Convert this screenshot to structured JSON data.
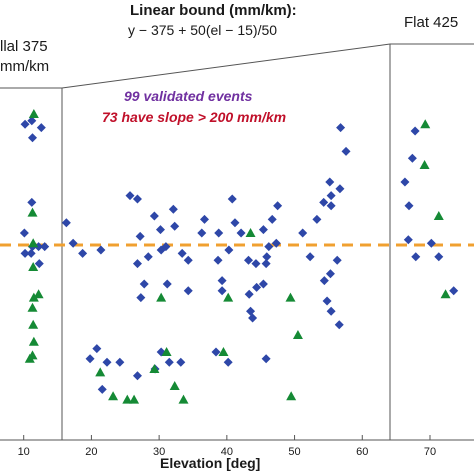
{
  "chart_data": {
    "type": "scatter",
    "xlabel": "Elevation [deg]",
    "ylabel": "",
    "xlim": [
      6.5,
      76.5
    ],
    "ylim": [
      0,
      1
    ],
    "x_ticks": [
      10,
      20,
      30,
      40,
      50,
      60,
      70
    ],
    "grid": false,
    "annotations": {
      "bound_title": "Linear bound (mm/km):",
      "bound_formula": "y − 375 + 50(el − 15)/50",
      "left_label_1": "llal 375",
      "left_label_2": "mm/km",
      "right_label": "Flat 425",
      "validated_events": "99 validated events",
      "slope_events": "73 have slope > 200 mm/km"
    },
    "threshold_line": {
      "style": "dashed",
      "color": "#f0a030"
    },
    "colors": {
      "diamond": "#2e47a8",
      "triangle": "#158a35",
      "line": "#555555"
    },
    "series": [
      {
        "marker": "diamond",
        "points": [
          [
            10.2,
            0.87
          ],
          [
            11.2,
            0.88
          ],
          [
            11.3,
            0.83
          ],
          [
            12.6,
            0.86
          ],
          [
            11.2,
            0.64
          ],
          [
            10.1,
            0.55
          ],
          [
            10.2,
            0.49
          ],
          [
            11.3,
            0.51
          ],
          [
            12.2,
            0.51
          ],
          [
            13.1,
            0.51
          ],
          [
            11.1,
            0.49
          ],
          [
            12.3,
            0.46
          ],
          [
            16.3,
            0.58
          ],
          [
            17.3,
            0.52
          ],
          [
            18.7,
            0.49
          ],
          [
            21.4,
            0.5
          ],
          [
            20.8,
            0.21
          ],
          [
            19.8,
            0.18
          ],
          [
            22.3,
            0.17
          ],
          [
            24.2,
            0.17
          ],
          [
            26.8,
            0.13
          ],
          [
            21.6,
            0.09
          ],
          [
            27.8,
            0.4
          ],
          [
            25.7,
            0.66
          ],
          [
            26.8,
            0.65
          ],
          [
            27.2,
            0.54
          ],
          [
            26.8,
            0.46
          ],
          [
            27.3,
            0.36
          ],
          [
            28.4,
            0.48
          ],
          [
            29.3,
            0.6
          ],
          [
            30.2,
            0.56
          ],
          [
            31.0,
            0.51
          ],
          [
            30.3,
            0.5
          ],
          [
            31.2,
            0.4
          ],
          [
            30.3,
            0.2
          ],
          [
            31.5,
            0.17
          ],
          [
            29.4,
            0.15
          ],
          [
            33.2,
            0.17
          ],
          [
            32.1,
            0.62
          ],
          [
            32.3,
            0.57
          ],
          [
            34.3,
            0.47
          ],
          [
            33.4,
            0.49
          ],
          [
            34.3,
            0.38
          ],
          [
            36.3,
            0.55
          ],
          [
            36.7,
            0.59
          ],
          [
            38.8,
            0.55
          ],
          [
            38.7,
            0.47
          ],
          [
            39.3,
            0.41
          ],
          [
            39.3,
            0.38
          ],
          [
            38.4,
            0.2
          ],
          [
            40.2,
            0.17
          ],
          [
            40.8,
            0.65
          ],
          [
            41.2,
            0.58
          ],
          [
            40.3,
            0.5
          ],
          [
            42.1,
            0.55
          ],
          [
            43.2,
            0.47
          ],
          [
            44.3,
            0.46
          ],
          [
            43.3,
            0.37
          ],
          [
            43.5,
            0.32
          ],
          [
            43.8,
            0.3
          ],
          [
            44.4,
            0.39
          ],
          [
            45.4,
            0.4
          ],
          [
            45.8,
            0.46
          ],
          [
            46.2,
            0.51
          ],
          [
            45.9,
            0.48
          ],
          [
            45.4,
            0.56
          ],
          [
            46.7,
            0.59
          ],
          [
            47.5,
            0.63
          ],
          [
            47.3,
            0.52
          ],
          [
            51.2,
            0.55
          ],
          [
            52.3,
            0.48
          ],
          [
            53.3,
            0.59
          ],
          [
            54.4,
            0.41
          ],
          [
            54.8,
            0.35
          ],
          [
            55.4,
            0.32
          ],
          [
            56.6,
            0.28
          ],
          [
            55.3,
            0.43
          ],
          [
            56.3,
            0.47
          ],
          [
            54.3,
            0.64
          ],
          [
            55.4,
            0.66
          ],
          [
            56.7,
            0.68
          ],
          [
            55.2,
            0.7
          ],
          [
            55.4,
            0.63
          ],
          [
            57.6,
            0.79
          ],
          [
            56.8,
            0.86
          ],
          [
            45.8,
            0.18
          ],
          [
            67.8,
            0.85
          ],
          [
            67.4,
            0.77
          ],
          [
            66.3,
            0.7
          ],
          [
            66.9,
            0.63
          ],
          [
            66.8,
            0.53
          ],
          [
            67.9,
            0.48
          ],
          [
            70.2,
            0.52
          ],
          [
            71.3,
            0.48
          ],
          [
            73.5,
            0.38
          ]
        ]
      },
      {
        "marker": "triangle",
        "points": [
          [
            11.5,
            0.9
          ],
          [
            11.3,
            0.61
          ],
          [
            11.4,
            0.52
          ],
          [
            11.4,
            0.45
          ],
          [
            12.2,
            0.37
          ],
          [
            11.5,
            0.36
          ],
          [
            11.3,
            0.33
          ],
          [
            11.4,
            0.28
          ],
          [
            11.5,
            0.23
          ],
          [
            11.3,
            0.19
          ],
          [
            10.9,
            0.18
          ],
          [
            21.3,
            0.14
          ],
          [
            23.2,
            0.07
          ],
          [
            25.3,
            0.06
          ],
          [
            26.3,
            0.06
          ],
          [
            29.3,
            0.15
          ],
          [
            30.3,
            0.36
          ],
          [
            31.1,
            0.2
          ],
          [
            32.3,
            0.1
          ],
          [
            33.6,
            0.06
          ],
          [
            39.5,
            0.2
          ],
          [
            40.2,
            0.36
          ],
          [
            43.5,
            0.55
          ],
          [
            49.4,
            0.36
          ],
          [
            49.5,
            0.07
          ],
          [
            50.5,
            0.25
          ],
          [
            69.2,
            0.75
          ],
          [
            69.3,
            0.87
          ],
          [
            71.3,
            0.6
          ],
          [
            72.3,
            0.37
          ]
        ]
      }
    ]
  }
}
